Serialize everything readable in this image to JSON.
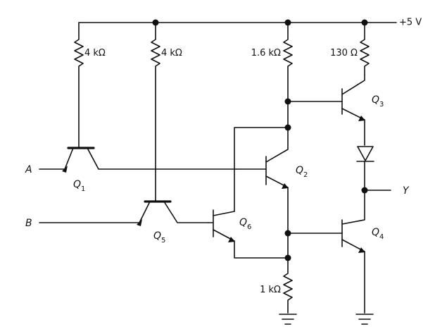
{
  "supply": {
    "label": "+5 V"
  },
  "resistors": {
    "r1": "4 kΩ",
    "r2": "4 kΩ",
    "r3": "1.6 kΩ",
    "r4": "130 Ω",
    "r5": "1 kΩ"
  },
  "inputs": {
    "a": "A",
    "b": "B"
  },
  "output": {
    "y": "Y"
  },
  "transistors": {
    "q1": {
      "letter": "Q",
      "sub": "1"
    },
    "q2": {
      "letter": "Q",
      "sub": "2"
    },
    "q3": {
      "letter": "Q",
      "sub": "3"
    },
    "q4": {
      "letter": "Q",
      "sub": "4"
    },
    "q5": {
      "letter": "Q",
      "sub": "5"
    },
    "q6": {
      "letter": "Q",
      "sub": "6"
    }
  }
}
